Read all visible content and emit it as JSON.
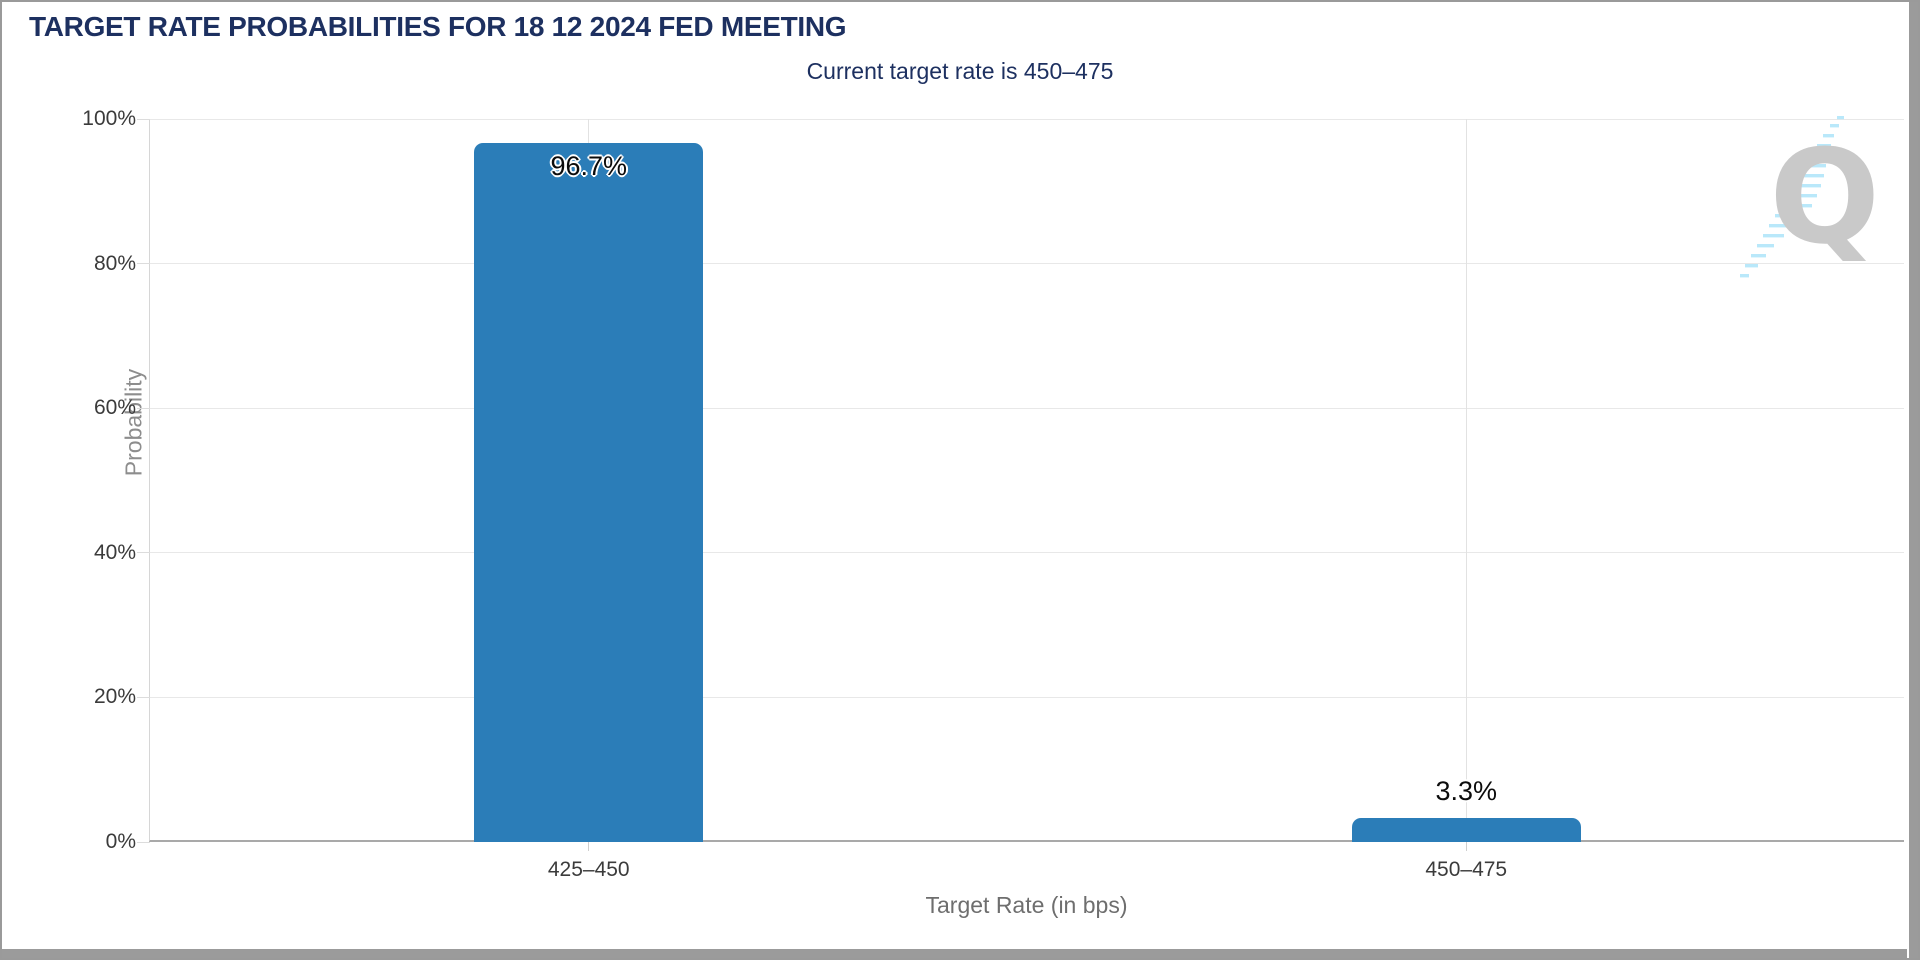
{
  "header": {
    "title": "TARGET RATE PROBABILITIES FOR 18 12 2024 FED MEETING",
    "subtitle": "Current target rate is 450–475"
  },
  "watermark": {
    "letter": "Q"
  },
  "chart_data": {
    "type": "bar",
    "title": "TARGET RATE PROBABILITIES FOR 18 12 2024 FED MEETING",
    "subtitle": "Current target rate is 450–475",
    "categories": [
      "425–450",
      "450–475"
    ],
    "values": [
      96.7,
      3.3
    ],
    "data_labels": [
      "96.7%",
      "3.3%"
    ],
    "xlabel": "Target Rate (in bps)",
    "ylabel": "Probability",
    "ylim": [
      0,
      100
    ],
    "ytick_labels": [
      "0%",
      "20%",
      "40%",
      "60%",
      "80%",
      "100%"
    ],
    "legend": "none",
    "grid": "horizontal 20% gridlines with vertical guide at each category",
    "bar_color": "#2b7db8"
  },
  "colors": {
    "title_navy": "#1d3060",
    "bar_blue": "#2b7db8",
    "watermark_gray": "#c9c9c9",
    "watermark_slash_blue": "#b9e8fa",
    "axis_gray": "#a9a9a9",
    "scrollbar_gray": "#9b9b9b"
  }
}
